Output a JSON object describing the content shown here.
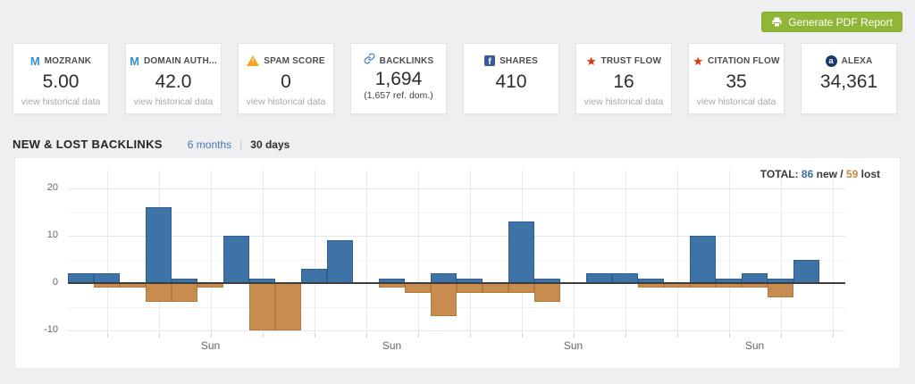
{
  "header": {
    "generate_pdf_label": "Generate PDF Report",
    "button_color": "#8fb637"
  },
  "cards": [
    {
      "icon": "moz-icon",
      "icon_text": "M",
      "label": "MOZRANK",
      "value": "5.00",
      "link": "view historical data"
    },
    {
      "icon": "moz-icon",
      "icon_text": "M",
      "label": "DOMAIN AUTH...",
      "value": "42.0",
      "link": "view historical data"
    },
    {
      "icon": "warning-icon",
      "icon_text": "!",
      "label": "SPAM SCORE",
      "value": "0",
      "link": "view historical data"
    },
    {
      "icon": "link-icon",
      "label": "BACKLINKS",
      "value": "1,694",
      "sub": "(1,657 ref. dom.)"
    },
    {
      "icon": "facebook-icon",
      "icon_text": "f",
      "label": "SHARES",
      "value": "410"
    },
    {
      "icon": "star-icon",
      "icon_text": "★",
      "label": "TRUST FLOW",
      "value": "16",
      "link": "view historical data"
    },
    {
      "icon": "star-icon",
      "icon_text": "★",
      "label": "CITATION FLOW",
      "value": "35",
      "link": "view historical data"
    },
    {
      "icon": "alexa-icon",
      "icon_text": "a",
      "label": "ALEXA",
      "value": "34,361"
    }
  ],
  "section": {
    "title": "NEW & LOST BACKLINKS",
    "tabs": [
      {
        "label": "6 months",
        "active": false
      },
      {
        "label": "30 days",
        "active": true
      }
    ],
    "tab_separator": "|"
  },
  "totals": {
    "prefix": "TOTAL: ",
    "new_value": "86",
    "new_suffix": " new / ",
    "lost_value": "59",
    "lost_suffix": " lost"
  },
  "chart_data": {
    "type": "bar",
    "title": "NEW & LOST BACKLINKS (30 days)",
    "days": 30,
    "series": [
      {
        "name": "new backlinks",
        "color": "#3e73a8",
        "values": [
          2,
          2,
          0,
          16,
          1,
          0,
          10,
          1,
          0,
          3,
          9,
          0,
          1,
          0,
          2,
          1,
          0,
          13,
          1,
          0,
          2,
          2,
          1,
          0,
          10,
          1,
          2,
          1,
          5,
          0
        ]
      },
      {
        "name": "lost backlinks",
        "color": "#c88c50",
        "values": [
          0,
          -1,
          -1,
          -4,
          -4,
          -1,
          0,
          -10,
          -10,
          0,
          0,
          0,
          -1,
          -2,
          -7,
          -2,
          -2,
          -2,
          -4,
          0,
          0,
          0,
          -1,
          -1,
          -1,
          -1,
          -1,
          -3,
          0,
          0
        ]
      }
    ],
    "totals": {
      "new": 86,
      "lost": 59
    },
    "y_ticks": [
      20,
      10,
      0,
      -10
    ],
    "ylim": [
      -11.5,
      23.5
    ],
    "grid": true,
    "x_axis": {
      "sun_labels": [
        {
          "day": 6,
          "label": "Sun"
        },
        {
          "day": 13,
          "label": "Sun"
        },
        {
          "day": 20,
          "label": "Sun"
        },
        {
          "day": 27,
          "label": "Sun"
        }
      ]
    }
  }
}
